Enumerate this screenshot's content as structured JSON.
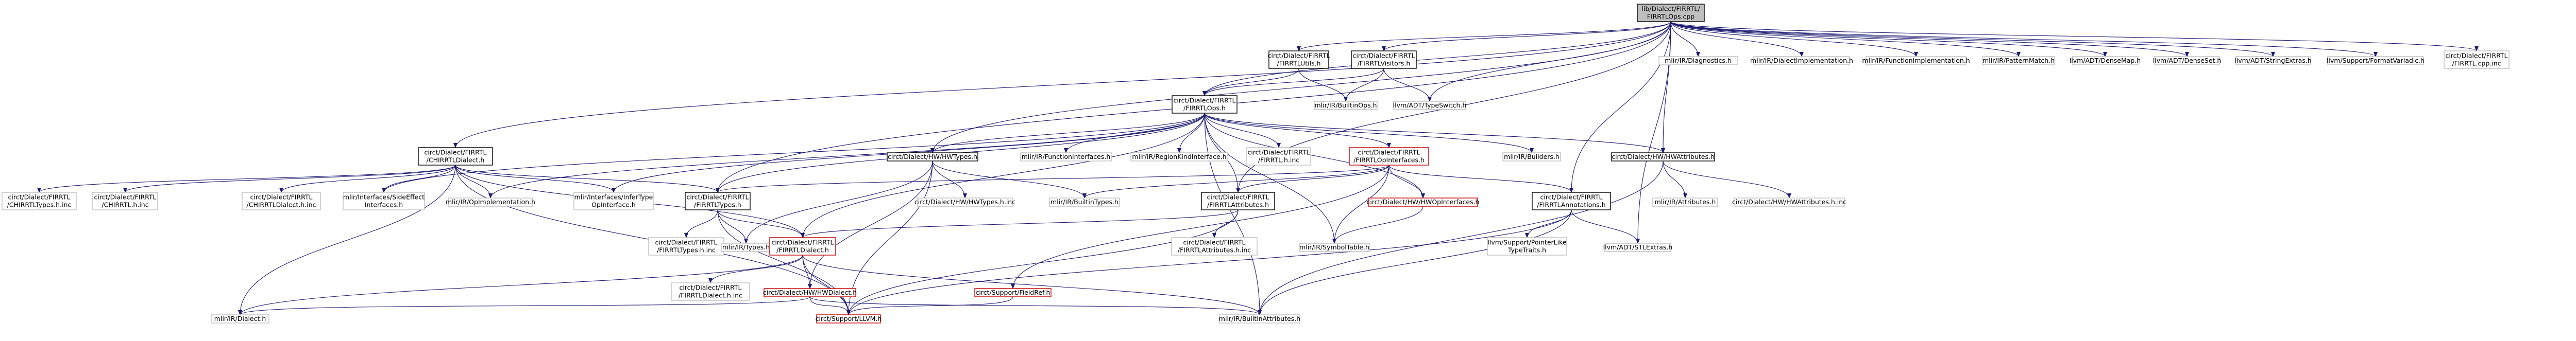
{
  "title": "",
  "colors": {
    "edge": "#191970",
    "text": "#000000",
    "root_fill": "#bfbfbf",
    "plain_border": "#000000",
    "group_border": "#000000",
    "missing_border": "#c10000",
    "external_border": "#bfbfbf"
  },
  "nodes": [
    {
      "id": "root",
      "style": "root",
      "lines": [
        "lib/Dialect/FIRRTL/",
        "FIRRTLOps.cpp"
      ]
    },
    {
      "id": "utils",
      "style": "plain",
      "lines": [
        "circt/Dialect/FIRRTL",
        "/FIRRTLUtils.h"
      ]
    },
    {
      "id": "visitors",
      "style": "plain",
      "lines": [
        "circt/Dialect/FIRRTL",
        "/FIRRTLVisitors.h"
      ]
    },
    {
      "id": "chirrtl",
      "style": "plain",
      "lines": [
        "circt/Dialect/FIRRTL",
        "/CHIRRTLDialect.h"
      ]
    },
    {
      "id": "diagnostics",
      "style": "external",
      "lines": [
        "mlir/IR/Diagnostics.h"
      ]
    },
    {
      "id": "dialectimpl",
      "style": "external",
      "lines": [
        "mlir/IR/DialectImplementation.h"
      ]
    },
    {
      "id": "funcimpl",
      "style": "external",
      "lines": [
        "mlir/IR/FunctionImplementation.h"
      ]
    },
    {
      "id": "patternmatch",
      "style": "external",
      "lines": [
        "mlir/IR/PatternMatch.h"
      ]
    },
    {
      "id": "densemap",
      "style": "external",
      "lines": [
        "llvm/ADT/DenseMap.h"
      ]
    },
    {
      "id": "denseset",
      "style": "external",
      "lines": [
        "llvm/ADT/DenseSet.h"
      ]
    },
    {
      "id": "stringextras",
      "style": "external",
      "lines": [
        "llvm/ADT/StringExtras.h"
      ]
    },
    {
      "id": "formatvariadic",
      "style": "external",
      "lines": [
        "llvm/Support/FormatVariadic.h"
      ]
    },
    {
      "id": "opsinc",
      "style": "external",
      "lines": [
        "circt/Dialect/FIRRTL",
        "/FIRRTL.cpp.inc"
      ]
    },
    {
      "id": "ops",
      "style": "plain",
      "lines": [
        "circt/Dialect/FIRRTL",
        "/FIRRTLOps.h"
      ]
    },
    {
      "id": "builtinops",
      "style": "external",
      "lines": [
        "mlir/IR/BuiltinOps.h"
      ]
    },
    {
      "id": "typeswitch",
      "style": "external",
      "lines": [
        "llvm/ADT/TypeSwitch.h"
      ]
    },
    {
      "id": "hwtypes",
      "style": "plain",
      "lines": [
        "circt/Dialect/HW/HWTypes.h"
      ]
    },
    {
      "id": "funcinterfaces",
      "style": "external",
      "lines": [
        "mlir/IR/FunctionInterfaces.h"
      ]
    },
    {
      "id": "regionkind",
      "style": "external",
      "lines": [
        "mlir/IR/RegionKindInterface.h"
      ]
    },
    {
      "id": "firrtlhinc",
      "style": "external",
      "lines": [
        "circt/Dialect/FIRRTL",
        "/FIRRTL.h.inc"
      ]
    },
    {
      "id": "opinterfaces",
      "style": "missing",
      "lines": [
        "circt/Dialect/FIRRTL",
        "/FIRRTLOpInterfaces.h"
      ]
    },
    {
      "id": "builders",
      "style": "external",
      "lines": [
        "mlir/IR/Builders.h"
      ]
    },
    {
      "id": "hwattributes",
      "style": "plain",
      "lines": [
        "circt/Dialect/HW/HWAttributes.h"
      ]
    },
    {
      "id": "chirrtltypesinc",
      "style": "external",
      "lines": [
        "circt/Dialect/FIRRTL",
        "/CHIRRTLTypes.h.inc"
      ]
    },
    {
      "id": "chirrtlhinc",
      "style": "external",
      "lines": [
        "circt/Dialect/FIRRTL",
        "/CHIRRTL.h.inc"
      ]
    },
    {
      "id": "chirrtldialectinc",
      "style": "external",
      "lines": [
        "circt/Dialect/FIRRTL",
        "/CHIRRTLDialect.h.inc"
      ]
    },
    {
      "id": "sideeffect",
      "style": "external",
      "lines": [
        "mlir/Interfaces/SideEffect",
        "Interfaces.h"
      ]
    },
    {
      "id": "opimplementation",
      "style": "external",
      "lines": [
        "mlir/IR/OpImplementation.h"
      ]
    },
    {
      "id": "infertype",
      "style": "external",
      "lines": [
        "mlir/Interfaces/InferType",
        "OpInterface.h"
      ]
    },
    {
      "id": "types",
      "style": "plain",
      "lines": [
        "circt/Dialect/FIRRTL",
        "/FIRRTLTypes.h"
      ]
    },
    {
      "id": "hwtypesinc",
      "style": "external",
      "lines": [
        "circt/Dialect/HW/HWTypes.h.inc"
      ]
    },
    {
      "id": "builtintypes",
      "style": "external",
      "lines": [
        "mlir/IR/BuiltinTypes.h"
      ]
    },
    {
      "id": "attributes",
      "style": "plain",
      "lines": [
        "circt/Dialect/FIRRTL",
        "/FIRRTLAttributes.h"
      ]
    },
    {
      "id": "hwopinterfaces",
      "style": "missing",
      "lines": [
        "circt/Dialect/HW/HWOpInterfaces.h"
      ]
    },
    {
      "id": "annotations",
      "style": "plain",
      "lines": [
        "circt/Dialect/FIRRTL",
        "/FIRRTLAnnotations.h"
      ]
    },
    {
      "id": "irattributes",
      "style": "external",
      "lines": [
        "mlir/IR/Attributes.h"
      ]
    },
    {
      "id": "hwattributesinc",
      "style": "external",
      "lines": [
        "circt/Dialect/HW/HWAttributes.h.inc"
      ]
    },
    {
      "id": "firrtltypesinc",
      "style": "external",
      "lines": [
        "circt/Dialect/FIRRTL",
        "/FIRRTLTypes.h.inc"
      ]
    },
    {
      "id": "irtypes",
      "style": "external",
      "lines": [
        "mlir/IR/Types.h"
      ]
    },
    {
      "id": "firrtldialect",
      "style": "missing",
      "lines": [
        "circt/Dialect/FIRRTL",
        "/FIRRTLDialect.h"
      ]
    },
    {
      "id": "attributesinc",
      "style": "external",
      "lines": [
        "circt/Dialect/FIRRTL",
        "/FIRRTLAttributes.h.inc"
      ]
    },
    {
      "id": "symboltable",
      "style": "external",
      "lines": [
        "mlir/IR/SymbolTable.h"
      ]
    },
    {
      "id": "pointerlike",
      "style": "external",
      "lines": [
        "llvm/Support/PointerLike",
        "TypeTraits.h"
      ]
    },
    {
      "id": "stlextras",
      "style": "external",
      "lines": [
        "llvm/ADT/STLExtras.h"
      ]
    },
    {
      "id": "firrtldialectinc",
      "style": "external",
      "lines": [
        "circt/Dialect/FIRRTL",
        "/FIRRTLDialect.h.inc"
      ]
    },
    {
      "id": "hwdialect",
      "style": "missing",
      "lines": [
        "circt/Dialect/HW/HWDialect.h"
      ]
    },
    {
      "id": "fieldref",
      "style": "missing",
      "lines": [
        "circt/Support/FieldRef.h"
      ]
    },
    {
      "id": "irdialect",
      "style": "external",
      "lines": [
        "mlir/IR/Dialect.h"
      ]
    },
    {
      "id": "llvmh",
      "style": "missing",
      "lines": [
        "circt/Support/LLVM.h"
      ]
    },
    {
      "id": "builtinattributes",
      "style": "external",
      "lines": [
        "mlir/IR/BuiltinAttributes.h"
      ]
    }
  ],
  "edges": [
    [
      "root",
      "utils"
    ],
    [
      "root",
      "visitors"
    ],
    [
      "root",
      "chirrtl"
    ],
    [
      "root",
      "diagnostics"
    ],
    [
      "root",
      "dialectimpl"
    ],
    [
      "root",
      "funcimpl"
    ],
    [
      "root",
      "patternmatch"
    ],
    [
      "root",
      "densemap"
    ],
    [
      "root",
      "denseset"
    ],
    [
      "root",
      "stringextras"
    ],
    [
      "root",
      "formatvariadic"
    ],
    [
      "root",
      "opsinc"
    ],
    [
      "root",
      "ops"
    ],
    [
      "root",
      "typeswitch"
    ],
    [
      "root",
      "hwtypes"
    ],
    [
      "root",
      "types"
    ],
    [
      "root",
      "attributes"
    ],
    [
      "root",
      "annotations"
    ],
    [
      "root",
      "stlextras"
    ],
    [
      "root",
      "hwattributes"
    ],
    [
      "utils",
      "ops"
    ],
    [
      "utils",
      "builtinops"
    ],
    [
      "visitors",
      "ops"
    ],
    [
      "visitors",
      "builtinops"
    ],
    [
      "visitors",
      "typeswitch"
    ],
    [
      "chirrtl",
      "chirrtltypesinc"
    ],
    [
      "chirrtl",
      "chirrtlhinc"
    ],
    [
      "chirrtl",
      "chirrtldialectinc"
    ],
    [
      "chirrtl",
      "sideeffect"
    ],
    [
      "chirrtl",
      "opimplementation"
    ],
    [
      "chirrtl",
      "infertype"
    ],
    [
      "chirrtl",
      "types"
    ],
    [
      "chirrtl",
      "firrtldialect"
    ],
    [
      "chirrtl",
      "irdialect"
    ],
    [
      "chirrtl",
      "llvmh"
    ],
    [
      "ops",
      "hwtypes"
    ],
    [
      "ops",
      "funcinterfaces"
    ],
    [
      "ops",
      "regionkind"
    ],
    [
      "ops",
      "firrtlhinc"
    ],
    [
      "ops",
      "opinterfaces"
    ],
    [
      "ops",
      "builders"
    ],
    [
      "ops",
      "hwattributes"
    ],
    [
      "ops",
      "sideeffect"
    ],
    [
      "ops",
      "opimplementation"
    ],
    [
      "ops",
      "infertype"
    ],
    [
      "ops",
      "types"
    ],
    [
      "ops",
      "attributes"
    ],
    [
      "ops",
      "hwopinterfaces"
    ],
    [
      "ops",
      "firrtldialect"
    ],
    [
      "ops",
      "symboltable"
    ],
    [
      "ops",
      "builtinattributes"
    ],
    [
      "hwtypes",
      "hwtypesinc"
    ],
    [
      "hwtypes",
      "builtintypes"
    ],
    [
      "hwtypes",
      "irtypes"
    ],
    [
      "hwtypes",
      "hwdialect"
    ],
    [
      "hwtypes",
      "llvmh"
    ],
    [
      "opinterfaces",
      "attributes"
    ],
    [
      "opinterfaces",
      "hwopinterfaces"
    ],
    [
      "opinterfaces",
      "symboltable"
    ],
    [
      "opinterfaces",
      "types"
    ],
    [
      "opinterfaces",
      "fieldref"
    ],
    [
      "opinterfaces",
      "annotations"
    ],
    [
      "opinterfaces",
      "builtintypes"
    ],
    [
      "hwattributes",
      "irattributes"
    ],
    [
      "hwattributes",
      "hwattributesinc"
    ],
    [
      "hwattributes",
      "builtinattributes"
    ],
    [
      "types",
      "firrtltypesinc"
    ],
    [
      "types",
      "irtypes"
    ],
    [
      "types",
      "firrtldialect"
    ],
    [
      "types",
      "llvmh"
    ],
    [
      "attributes",
      "attributesinc"
    ],
    [
      "attributes",
      "firrtldialect"
    ],
    [
      "attributes",
      "llvmh"
    ],
    [
      "hwopinterfaces",
      "symboltable"
    ],
    [
      "annotations",
      "pointerlike"
    ],
    [
      "annotations",
      "stlextras"
    ],
    [
      "annotations",
      "builtinattributes"
    ],
    [
      "annotations",
      "llvmh"
    ],
    [
      "firrtldialect",
      "firrtldialectinc"
    ],
    [
      "firrtldialect",
      "hwdialect"
    ],
    [
      "firrtldialect",
      "irdialect"
    ],
    [
      "firrtldialect",
      "llvmh"
    ],
    [
      "firrtldialect",
      "builtinattributes"
    ],
    [
      "hwdialect",
      "irdialect"
    ],
    [
      "hwdialect",
      "llvmh"
    ],
    [
      "hwdialect",
      "builtinattributes"
    ],
    [
      "fieldref",
      "llvmh"
    ]
  ]
}
